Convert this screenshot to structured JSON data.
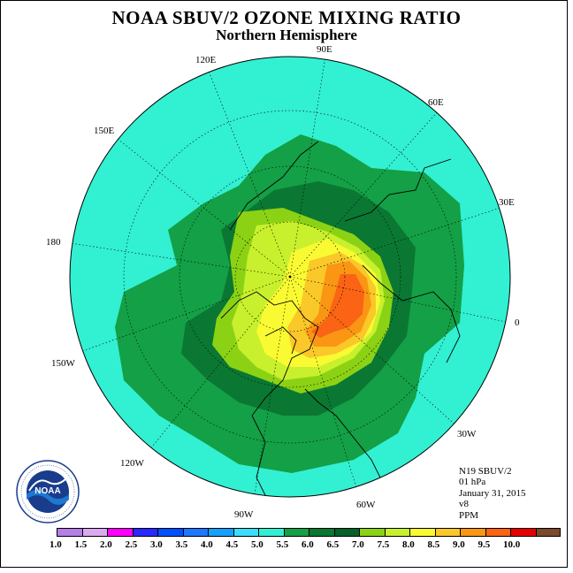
{
  "title": "NOAA SBUV/2 OZONE MIXING RATIO",
  "subtitle": "Northern Hemisphere",
  "longitude_labels": {
    "e90": "90E",
    "e60": "60E",
    "e30": "30E",
    "zero": "0",
    "w30": "30W",
    "w60": "60W",
    "w90": "90W",
    "w120": "120W",
    "w150": "150W",
    "d180": "180",
    "e150": "150E",
    "e120": "120E"
  },
  "info": {
    "instrument": "N19 SBUV/2",
    "level": "01 hPa",
    "date": "January 31, 2015",
    "version": "v8",
    "units": "PPM"
  },
  "logo": {
    "text": "NOAA",
    "ring_text": "NATIONAL OCEANIC AND ATMOSPHERIC ADMINISTRATION · U.S. DEPARTMENT OF COMMERCE"
  },
  "colorbar": {
    "ticks": [
      "1.0",
      "1.5",
      "2.0",
      "2.5",
      "3.0",
      "3.5",
      "4.0",
      "4.5",
      "5.0",
      "5.5",
      "6.0",
      "6.5",
      "7.0",
      "7.5",
      "8.0",
      "8.5",
      "9.0",
      "9.5",
      "10.0"
    ],
    "colors": [
      "#b57fe6",
      "#dcaaf0",
      "#ff00ff",
      "#2828ff",
      "#0050ff",
      "#1e78ff",
      "#14a0ff",
      "#3cdcff",
      "#32f0d2",
      "#14a046",
      "#0a7832",
      "#06602a",
      "#8cd214",
      "#c8f02d",
      "#fafa32",
      "#fac828",
      "#fa9614",
      "#fa6414",
      "#e60000",
      "#7a4a2a"
    ]
  }
}
